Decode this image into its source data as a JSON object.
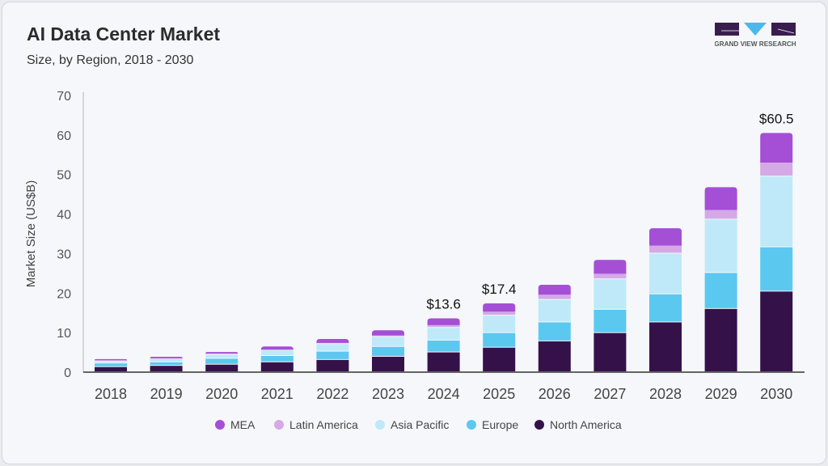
{
  "header": {
    "title": "AI Data Center Market",
    "subtitle": "Size, by Region, 2018 - 2030"
  },
  "logo": {
    "text": "GRAND VIEW RESEARCH"
  },
  "chart_data": {
    "type": "bar",
    "stacked": true,
    "ylabel": "Market Size (US$B)",
    "xlabel": "",
    "ylim": [
      0,
      70
    ],
    "yticks": [
      0,
      10,
      20,
      30,
      40,
      50,
      60,
      70
    ],
    "grid": false,
    "legend_position": "bottom",
    "categories": [
      "2018",
      "2019",
      "2020",
      "2021",
      "2022",
      "2023",
      "2024",
      "2025",
      "2026",
      "2027",
      "2028",
      "2029",
      "2030"
    ],
    "series": [
      {
        "name": "North America",
        "color": "#35114a",
        "values": [
          1.3,
          1.6,
          1.9,
          2.5,
          3.1,
          3.9,
          5.0,
          6.2,
          7.8,
          9.9,
          12.6,
          16.0,
          20.4
        ]
      },
      {
        "name": "Europe",
        "color": "#5bc8f0",
        "values": [
          0.9,
          0.9,
          1.5,
          1.6,
          2.1,
          2.5,
          3.0,
          3.7,
          4.8,
          5.9,
          7.1,
          9.1,
          11.2
        ]
      },
      {
        "name": "Asia Pacific",
        "color": "#bfe9f8",
        "values": [
          0.5,
          0.8,
          1.0,
          1.4,
          1.9,
          2.5,
          3.2,
          4.4,
          5.7,
          7.7,
          10.3,
          13.5,
          17.9
        ]
      },
      {
        "name": "Latin America",
        "color": "#d4a9e6",
        "values": [
          0.3,
          0.2,
          0.3,
          0.2,
          0.3,
          0.4,
          0.7,
          1.0,
          1.3,
          1.4,
          2.0,
          2.4,
          3.5
        ]
      },
      {
        "name": "MEA",
        "color": "#a44fd6",
        "values": [
          0.3,
          0.4,
          0.4,
          0.8,
          1.0,
          1.3,
          1.7,
          2.1,
          2.5,
          3.5,
          4.4,
          5.8,
          7.5
        ]
      }
    ],
    "annotations": [
      {
        "category": "2024",
        "text": "$13.6"
      },
      {
        "category": "2025",
        "text": "$17.4"
      },
      {
        "category": "2030",
        "text": "$60.5"
      }
    ],
    "legend_order": [
      "MEA",
      "Latin America",
      "Asia Pacific",
      "Europe",
      "North America"
    ]
  }
}
